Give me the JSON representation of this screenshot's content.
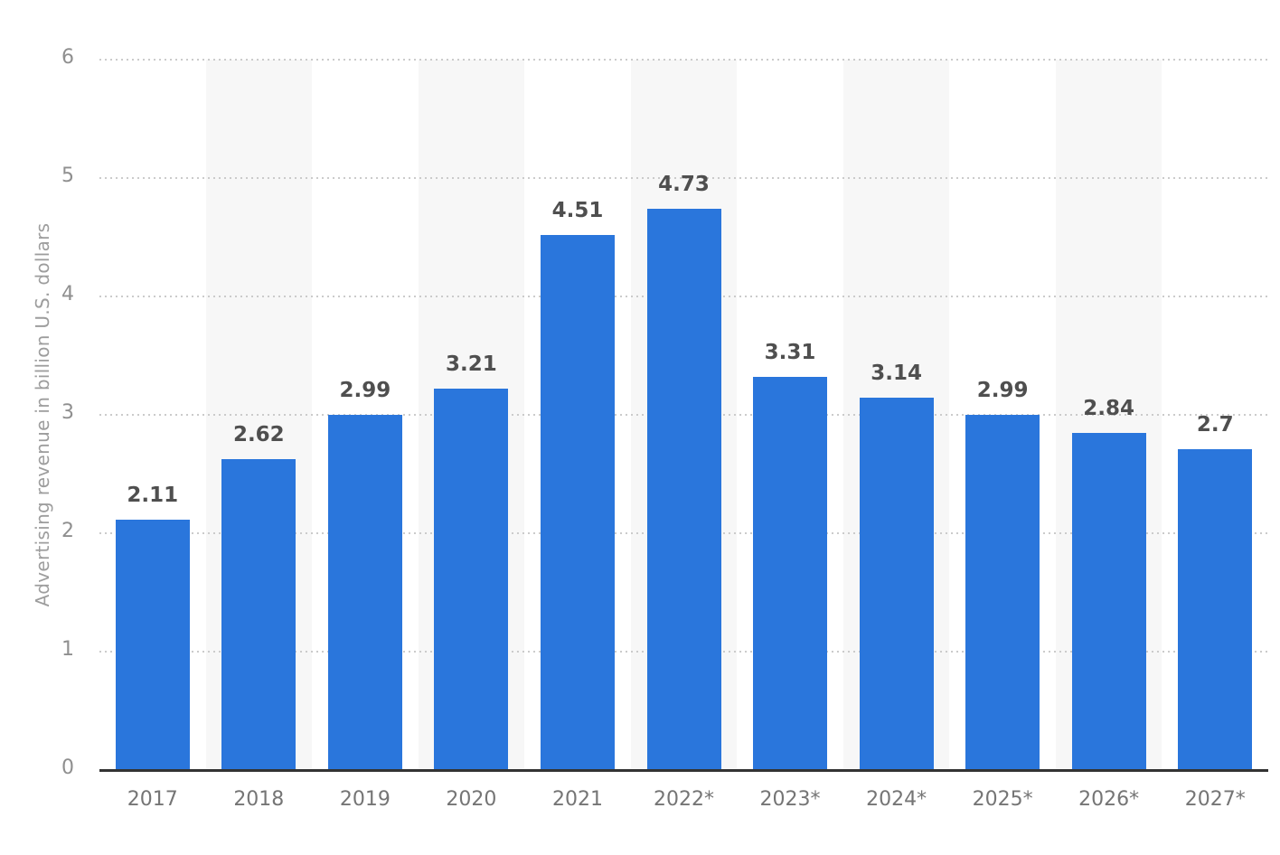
{
  "chart_data": {
    "type": "bar",
    "title": "",
    "categories": [
      "2017",
      "2018",
      "2019",
      "2020",
      "2021",
      "2022*",
      "2023*",
      "2024*",
      "2025*",
      "2026*",
      "2027*"
    ],
    "values": [
      2.11,
      2.62,
      2.99,
      3.21,
      4.51,
      4.73,
      3.31,
      3.14,
      2.99,
      2.84,
      2.7
    ],
    "value_labels": [
      "2.11",
      "2.62",
      "2.99",
      "3.21",
      "4.51",
      "4.73",
      "3.31",
      "3.14",
      "2.99",
      "2.84",
      "2.7"
    ],
    "xlabel": "",
    "ylabel": "Advertising revenue in billion U.S. dollars",
    "ylim": [
      0,
      6
    ],
    "yticks": [
      0,
      1,
      2,
      3,
      4,
      5,
      6
    ],
    "grid": "dotted-horizontal",
    "legend_position": "none",
    "bar_color": "#2a76dc",
    "band_color": "#f7f7f7",
    "background_color": "#ffffff",
    "alternating_column_bands": true
  }
}
